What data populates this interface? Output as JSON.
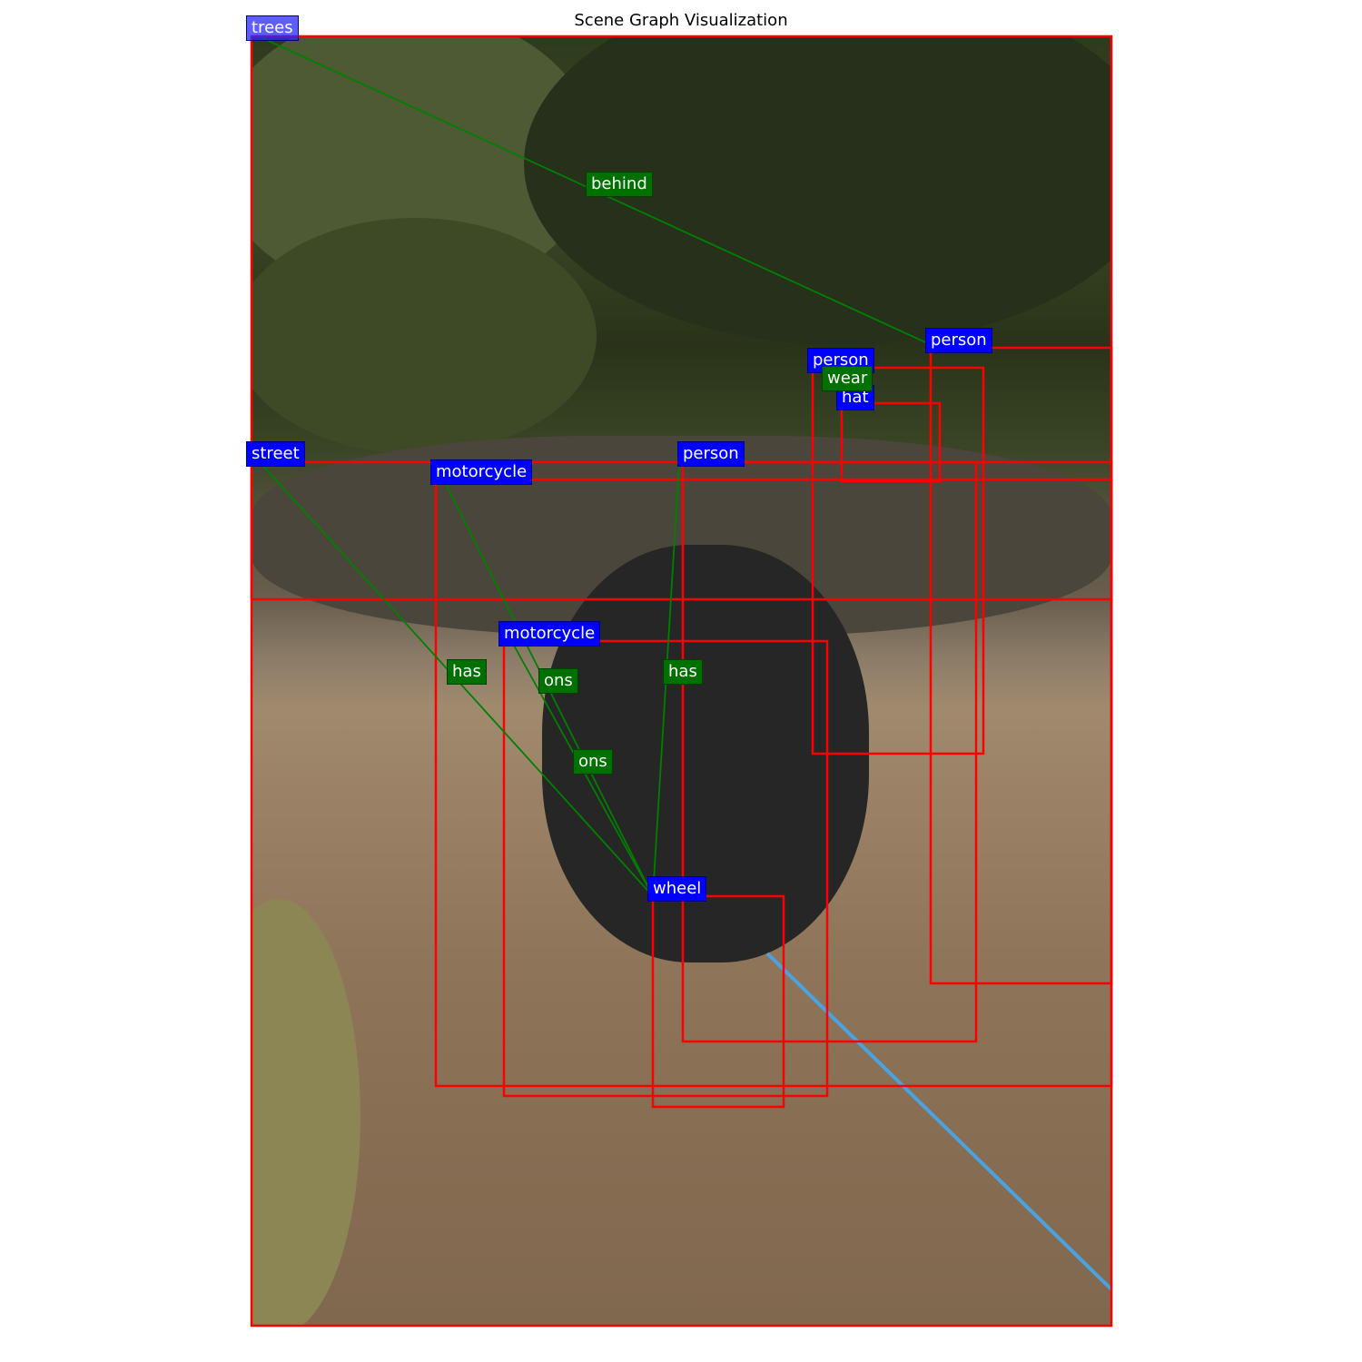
{
  "title": "Scene Graph Visualization",
  "colors": {
    "box": "#ff0000",
    "object_label": "#0000ff",
    "relation_label": "#007000",
    "relation_line": "#008000",
    "rope": "#4aa3e0"
  },
  "objects": [
    {
      "id": "trees",
      "label": "trees"
    },
    {
      "id": "person_right",
      "label": "person"
    },
    {
      "id": "person_hat",
      "label": "person"
    },
    {
      "id": "hat",
      "label": "hat"
    },
    {
      "id": "street",
      "label": "street"
    },
    {
      "id": "motorcycle_back",
      "label": "motorcycle"
    },
    {
      "id": "person_mid",
      "label": "person"
    },
    {
      "id": "motorcycle_front",
      "label": "motorcycle"
    },
    {
      "id": "wheel",
      "label": "wheel"
    }
  ],
  "relations": [
    {
      "subject": "trees",
      "predicate": "behind",
      "object": "person_right"
    },
    {
      "subject": "person_hat",
      "predicate": "wear",
      "object": "hat"
    },
    {
      "subject": "street",
      "predicate": "has",
      "object": "wheel"
    },
    {
      "subject": "motorcycle_back",
      "predicate": "ons",
      "object": "wheel"
    },
    {
      "subject": "person_mid",
      "predicate": "has",
      "object": "wheel"
    },
    {
      "subject": "motorcycle_front",
      "predicate": "ons",
      "object": "wheel"
    }
  ]
}
